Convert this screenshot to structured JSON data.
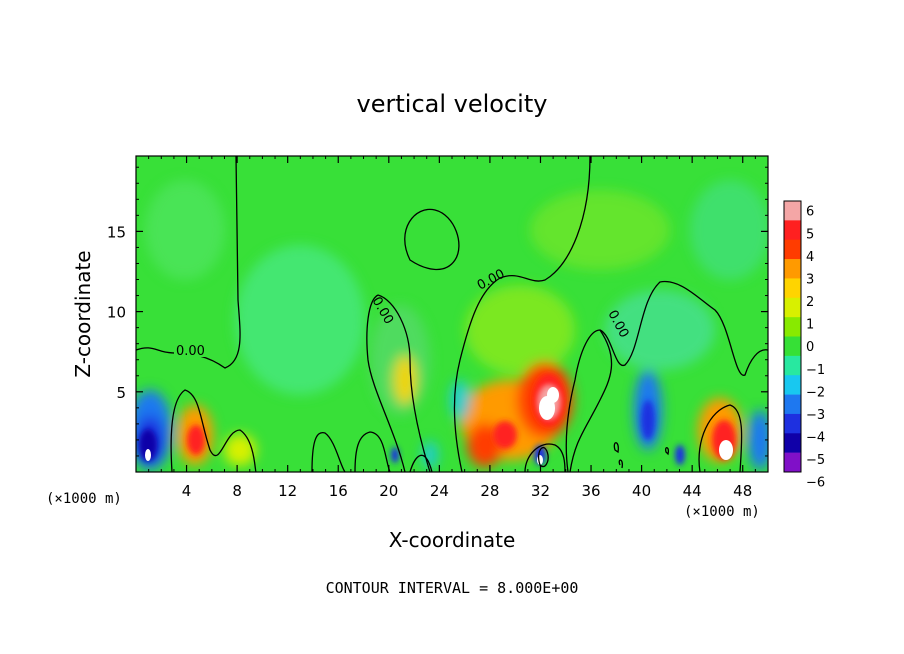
{
  "chart_data": {
    "type": "heatmap",
    "title": "vertical velocity",
    "xlabel": "X-coordinate",
    "ylabel": "Z-coordinate",
    "x_unit_left": "(×1000 m)",
    "x_unit_right": "(×1000 m)",
    "footer": "CONTOUR INTERVAL = 8.000E+00",
    "xlim": [
      0,
      50
    ],
    "ylim": [
      0,
      19.7
    ],
    "x_ticks": [
      "4",
      "8",
      "12",
      "16",
      "20",
      "24",
      "28",
      "32",
      "36",
      "40",
      "44",
      "48"
    ],
    "y_ticks": [
      "5",
      "10",
      "15"
    ],
    "colorbar": {
      "range": [
        -6,
        6
      ],
      "labels": [
        "6",
        "5",
        "4",
        "3",
        "2",
        "1",
        "0",
        "−1",
        "−2",
        "−3",
        "−4",
        "−5",
        "−6"
      ],
      "colors": [
        "#f4a6a6",
        "#ff2020",
        "#ff3c00",
        "#ff9a00",
        "#ffd400",
        "#d8f000",
        "#88ea00",
        "#36e036",
        "#28e8a0",
        "#18c8f0",
        "#1e78f0",
        "#1e30e0",
        "#1000a8",
        "#8010c8"
      ]
    },
    "contour_labels": [
      "0.00",
      "0.00",
      "0.00",
      "0.00"
    ],
    "background_color": "#38e038"
  }
}
